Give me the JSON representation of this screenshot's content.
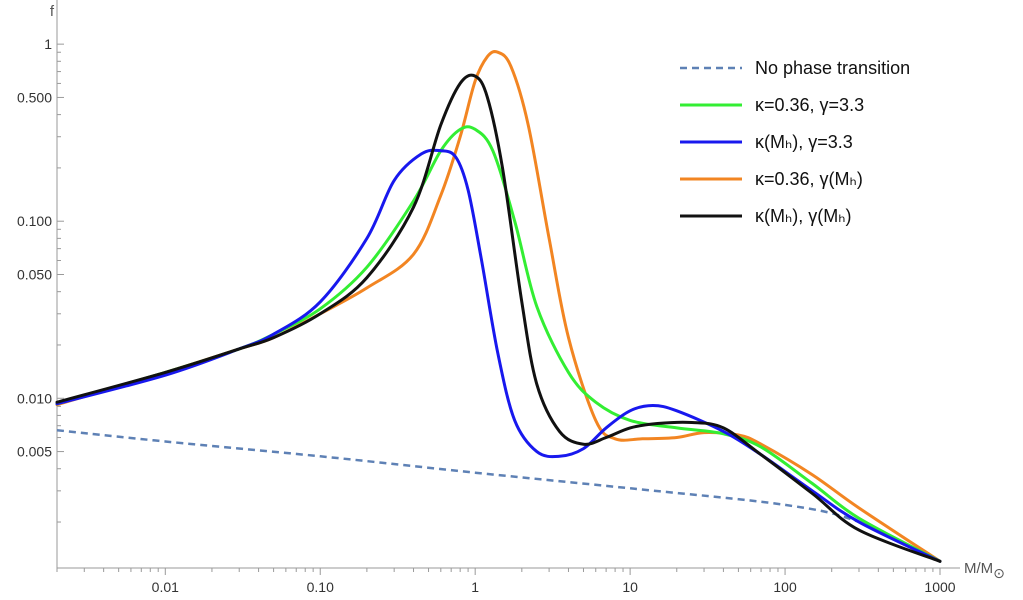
{
  "chart_data": {
    "type": "line",
    "xscale": "log",
    "yscale": "log",
    "xlabel": "M/M⊙",
    "ylabel": "f",
    "xlim": [
      0.002,
      1000
    ],
    "ylim": [
      0.0011,
      1.6
    ],
    "x_ticks": [
      {
        "value": 0.01,
        "label": "0.01"
      },
      {
        "value": 0.1,
        "label": "0.10"
      },
      {
        "value": 1,
        "label": "1"
      },
      {
        "value": 10,
        "label": "10"
      },
      {
        "value": 100,
        "label": "100"
      },
      {
        "value": 1000,
        "label": "1000"
      }
    ],
    "y_ticks": [
      {
        "value": 0.005,
        "label": "0.005"
      },
      {
        "value": 0.01,
        "label": "0.010"
      },
      {
        "value": 0.05,
        "label": "0.050"
      },
      {
        "value": 0.1,
        "label": "0.100"
      },
      {
        "value": 0.5,
        "label": "0.500"
      },
      {
        "value": 1,
        "label": "1"
      }
    ],
    "legend_position": "top-right",
    "series": [
      {
        "name": "No phase transition",
        "color": "#5e81b5",
        "dashed": true,
        "x": [
          0.002,
          0.01,
          0.1,
          1,
          10,
          100,
          300,
          1000
        ],
        "y": [
          0.0066,
          0.0057,
          0.0047,
          0.0038,
          0.0031,
          0.0025,
          0.002,
          0.0012
        ]
      },
      {
        "name": "κ=0.36, γ=3.3",
        "color": "#33ee33",
        "dashed": false,
        "x": [
          0.002,
          0.01,
          0.03,
          0.05,
          0.1,
          0.2,
          0.4,
          0.6,
          0.8,
          1,
          1.3,
          1.8,
          2.5,
          4,
          6,
          10,
          20,
          40,
          70,
          150,
          300,
          1000
        ],
        "y": [
          0.0093,
          0.014,
          0.019,
          0.023,
          0.032,
          0.055,
          0.13,
          0.25,
          0.33,
          0.33,
          0.25,
          0.1,
          0.033,
          0.014,
          0.0095,
          0.0075,
          0.0068,
          0.0063,
          0.0053,
          0.0033,
          0.0021,
          0.0012
        ]
      },
      {
        "name": "κ(Mₕ), γ=3.3",
        "color": "#1818ee",
        "dashed": false,
        "x": [
          0.002,
          0.01,
          0.03,
          0.05,
          0.1,
          0.2,
          0.3,
          0.45,
          0.6,
          0.75,
          0.9,
          1.1,
          1.4,
          1.8,
          2.5,
          3.5,
          5,
          7,
          10,
          14,
          20,
          40,
          70,
          150,
          300,
          1000
        ],
        "y": [
          0.0093,
          0.0135,
          0.019,
          0.023,
          0.035,
          0.08,
          0.17,
          0.24,
          0.25,
          0.23,
          0.15,
          0.06,
          0.018,
          0.0075,
          0.005,
          0.0047,
          0.0052,
          0.0068,
          0.0085,
          0.0091,
          0.0085,
          0.0065,
          0.0048,
          0.003,
          0.002,
          0.0012
        ]
      },
      {
        "name": "κ=0.36, γ(Mₕ)",
        "color": "#f28522",
        "dashed": false,
        "x": [
          0.002,
          0.01,
          0.03,
          0.05,
          0.1,
          0.2,
          0.4,
          0.6,
          0.8,
          1,
          1.2,
          1.4,
          1.7,
          2.2,
          3,
          4,
          6,
          8,
          12,
          20,
          30,
          50,
          70,
          150,
          300,
          1000
        ],
        "y": [
          0.0092,
          0.014,
          0.019,
          0.022,
          0.03,
          0.042,
          0.065,
          0.14,
          0.3,
          0.62,
          0.85,
          0.9,
          0.75,
          0.35,
          0.08,
          0.022,
          0.0075,
          0.0059,
          0.0059,
          0.006,
          0.0064,
          0.0062,
          0.0055,
          0.0037,
          0.0024,
          0.0012
        ]
      },
      {
        "name": "κ(Mₕ), γ(Mₕ)",
        "color": "#111111",
        "dashed": false,
        "x": [
          0.002,
          0.01,
          0.03,
          0.05,
          0.1,
          0.2,
          0.4,
          0.6,
          0.8,
          1,
          1.2,
          1.5,
          2,
          2.5,
          3.5,
          5,
          7,
          10,
          15,
          25,
          40,
          70,
          150,
          300,
          1000
        ],
        "y": [
          0.0095,
          0.014,
          0.019,
          0.022,
          0.03,
          0.048,
          0.12,
          0.35,
          0.6,
          0.66,
          0.5,
          0.2,
          0.035,
          0.012,
          0.0065,
          0.0055,
          0.006,
          0.0068,
          0.0072,
          0.0073,
          0.0068,
          0.0048,
          0.0029,
          0.0018,
          0.0012
        ]
      }
    ]
  }
}
